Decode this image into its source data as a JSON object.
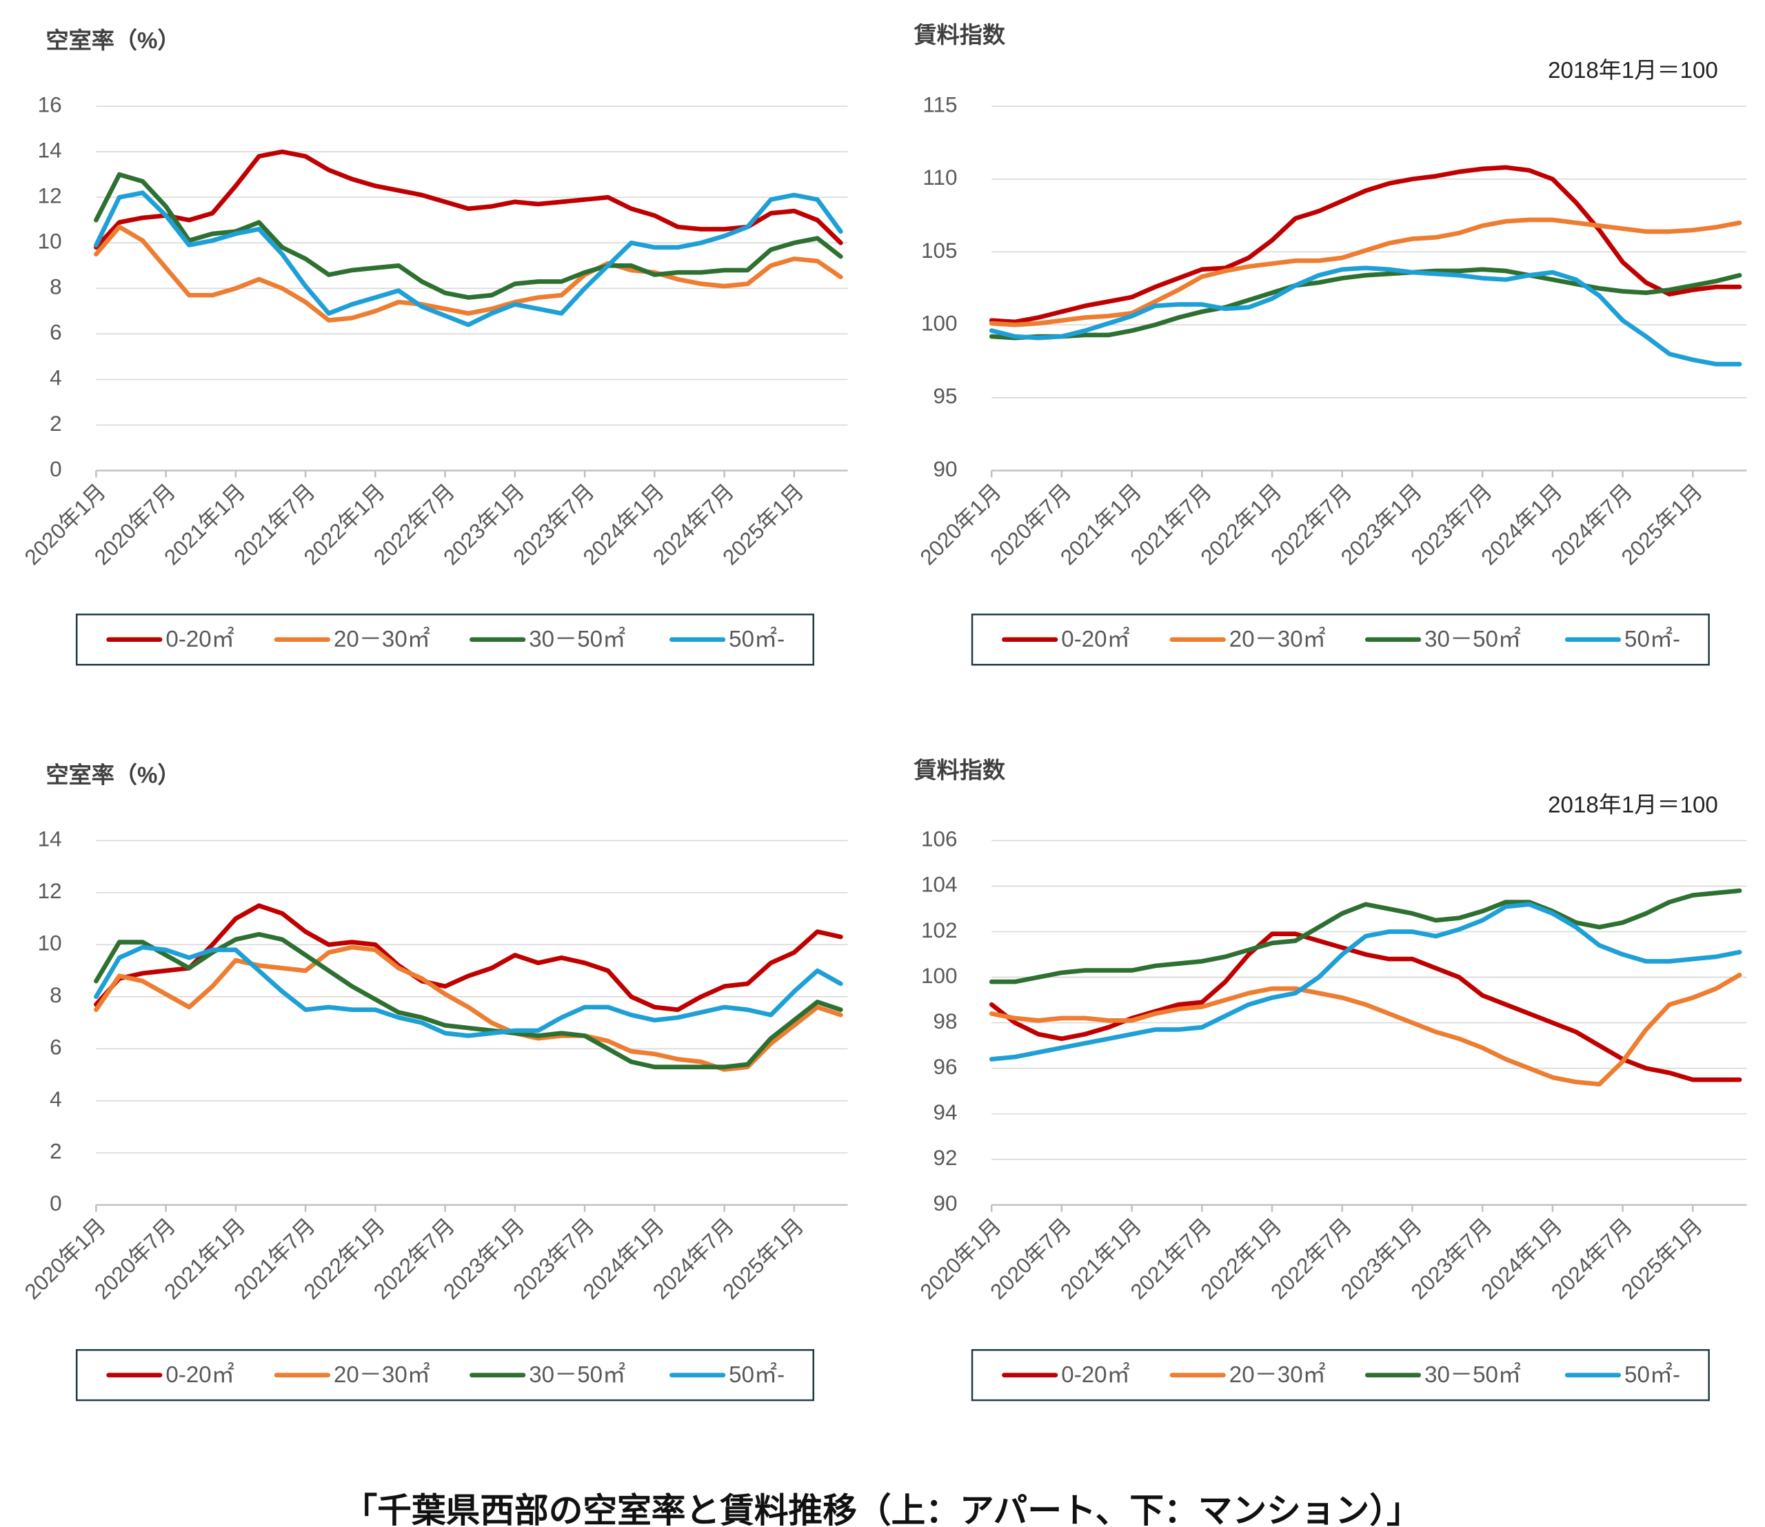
{
  "caption": "「千葉県西部の空室率と賃料推移（上：アパート、下：マンション）」",
  "chart_data": [
    {
      "type": "line",
      "title": "空室率（%）",
      "grid": true,
      "legend": "bottom",
      "categories": [
        "2020年1月",
        null,
        null,
        "2020年7月",
        null,
        null,
        "2021年1月",
        null,
        null,
        "2021年7月",
        null,
        null,
        "2022年1月",
        null,
        null,
        "2022年7月",
        null,
        null,
        "2023年1月",
        null,
        null,
        "2023年7月",
        null,
        null,
        "2024年1月",
        null,
        null,
        "2024年7月",
        null,
        null,
        "2025年1月",
        null,
        null
      ],
      "ylim": [
        0,
        16
      ],
      "yticks": [
        0,
        2,
        4,
        6,
        8,
        10,
        12,
        14,
        16
      ],
      "series": [
        {
          "name": "0-20㎡",
          "color": "#c00000",
          "values": [
            9.8,
            10.9,
            11.1,
            11.2,
            11.0,
            11.3,
            12.5,
            13.8,
            14.0,
            13.8,
            13.2,
            12.8,
            12.5,
            12.3,
            12.1,
            11.8,
            11.5,
            11.6,
            11.8,
            11.7,
            11.8,
            11.9,
            12.0,
            11.5,
            11.2,
            10.7,
            10.6,
            10.6,
            10.7,
            11.3,
            11.4,
            11.0,
            10.0
          ]
        },
        {
          "name": "20－30㎡",
          "color": "#ed7d31",
          "values": [
            9.5,
            10.7,
            10.1,
            8.9,
            7.7,
            7.7,
            8.0,
            8.4,
            8.0,
            7.4,
            6.6,
            6.7,
            7.0,
            7.4,
            7.3,
            7.1,
            6.9,
            7.1,
            7.4,
            7.6,
            7.7,
            8.6,
            9.1,
            8.8,
            8.7,
            8.4,
            8.2,
            8.1,
            8.2,
            9.0,
            9.3,
            9.2,
            8.5
          ]
        },
        {
          "name": "30－50㎡",
          "color": "#2e7031",
          "values": [
            11.0,
            13.0,
            12.7,
            11.6,
            10.1,
            10.4,
            10.5,
            10.9,
            9.8,
            9.3,
            8.6,
            8.8,
            8.9,
            9.0,
            8.3,
            7.8,
            7.6,
            7.7,
            8.2,
            8.3,
            8.3,
            8.7,
            9.0,
            9.0,
            8.6,
            8.7,
            8.7,
            8.8,
            8.8,
            9.7,
            10.0,
            10.2,
            9.4
          ]
        },
        {
          "name": "50㎡-",
          "color": "#1ea0d6",
          "values": [
            9.9,
            12.0,
            12.2,
            11.2,
            9.9,
            10.1,
            10.4,
            10.6,
            9.5,
            8.1,
            6.9,
            7.3,
            7.6,
            7.9,
            7.2,
            6.8,
            6.4,
            6.9,
            7.3,
            7.1,
            6.9,
            8.0,
            9.0,
            10.0,
            9.8,
            9.8,
            10.0,
            10.3,
            10.7,
            11.9,
            12.1,
            11.9,
            10.5
          ]
        }
      ]
    },
    {
      "type": "line",
      "title": "賃料指数",
      "note": "2018年1月＝100",
      "grid": true,
      "legend": "bottom",
      "categories": [
        "2020年1月",
        null,
        null,
        "2020年7月",
        null,
        null,
        "2021年1月",
        null,
        null,
        "2021年7月",
        null,
        null,
        "2022年1月",
        null,
        null,
        "2022年7月",
        null,
        null,
        "2023年1月",
        null,
        null,
        "2023年7月",
        null,
        null,
        "2024年1月",
        null,
        null,
        "2024年7月",
        null,
        null,
        "2025年1月",
        null,
        null
      ],
      "ylim": [
        90,
        115
      ],
      "yticks": [
        90,
        95,
        100,
        105,
        110,
        115
      ],
      "series": [
        {
          "name": "0-20㎡",
          "color": "#c00000",
          "values": [
            100.3,
            100.2,
            100.5,
            100.9,
            101.3,
            101.6,
            101.9,
            102.6,
            103.2,
            103.8,
            103.9,
            104.6,
            105.8,
            107.3,
            107.8,
            108.5,
            109.2,
            109.7,
            110.0,
            110.2,
            110.5,
            110.7,
            110.8,
            110.6,
            110.0,
            108.4,
            106.5,
            104.3,
            102.9,
            102.1,
            102.4,
            102.6,
            102.6
          ]
        },
        {
          "name": "20－30㎡",
          "color": "#ed7d31",
          "values": [
            100.1,
            100.0,
            100.1,
            100.3,
            100.5,
            100.6,
            100.8,
            101.6,
            102.4,
            103.3,
            103.7,
            104.0,
            104.2,
            104.4,
            104.4,
            104.6,
            105.1,
            105.6,
            105.9,
            106.0,
            106.3,
            106.8,
            107.1,
            107.2,
            107.2,
            107.0,
            106.8,
            106.6,
            106.4,
            106.4,
            106.5,
            106.7,
            107.0
          ]
        },
        {
          "name": "30－50㎡",
          "color": "#2e7031",
          "values": [
            99.2,
            99.1,
            99.2,
            99.2,
            99.3,
            99.3,
            99.6,
            100.0,
            100.5,
            100.9,
            101.2,
            101.7,
            102.2,
            102.7,
            102.9,
            103.2,
            103.4,
            103.5,
            103.6,
            103.7,
            103.7,
            103.8,
            103.7,
            103.4,
            103.1,
            102.8,
            102.5,
            102.3,
            102.2,
            102.4,
            102.7,
            103.0,
            103.4
          ]
        },
        {
          "name": "50㎡-",
          "color": "#1ea0d6",
          "values": [
            99.6,
            99.2,
            99.1,
            99.2,
            99.6,
            100.1,
            100.6,
            101.3,
            101.4,
            101.4,
            101.1,
            101.2,
            101.8,
            102.7,
            103.4,
            103.8,
            103.9,
            103.8,
            103.6,
            103.5,
            103.4,
            103.2,
            103.1,
            103.4,
            103.6,
            103.1,
            102.0,
            100.3,
            99.2,
            98.0,
            97.6,
            97.3,
            97.3
          ]
        }
      ]
    },
    {
      "type": "line",
      "title": "空室率（%）",
      "grid": true,
      "legend": "bottom",
      "categories": [
        "2020年1月",
        null,
        null,
        "2020年7月",
        null,
        null,
        "2021年1月",
        null,
        null,
        "2021年7月",
        null,
        null,
        "2022年1月",
        null,
        null,
        "2022年7月",
        null,
        null,
        "2023年1月",
        null,
        null,
        "2023年7月",
        null,
        null,
        "2024年1月",
        null,
        null,
        "2024年7月",
        null,
        null,
        "2025年1月",
        null,
        null
      ],
      "ylim": [
        0,
        14
      ],
      "yticks": [
        0,
        2,
        4,
        6,
        8,
        10,
        12,
        14
      ],
      "series": [
        {
          "name": "0-20㎡",
          "color": "#c00000",
          "values": [
            7.7,
            8.7,
            8.9,
            9.0,
            9.1,
            10.0,
            11.0,
            11.5,
            11.2,
            10.5,
            10.0,
            10.1,
            10.0,
            9.2,
            8.6,
            8.4,
            8.8,
            9.1,
            9.6,
            9.3,
            9.5,
            9.3,
            9.0,
            8.0,
            7.6,
            7.5,
            8.0,
            8.4,
            8.5,
            9.3,
            9.7,
            10.5,
            10.3
          ]
        },
        {
          "name": "20－30㎡",
          "color": "#ed7d31",
          "values": [
            7.5,
            8.8,
            8.6,
            8.1,
            7.6,
            8.4,
            9.4,
            9.2,
            9.1,
            9.0,
            9.7,
            9.9,
            9.8,
            9.1,
            8.7,
            8.1,
            7.6,
            7.0,
            6.6,
            6.4,
            6.5,
            6.5,
            6.3,
            5.9,
            5.8,
            5.6,
            5.5,
            5.2,
            5.3,
            6.2,
            6.9,
            7.6,
            7.3
          ]
        },
        {
          "name": "30－50㎡",
          "color": "#2e7031",
          "values": [
            8.6,
            10.1,
            10.1,
            9.6,
            9.1,
            9.7,
            10.2,
            10.4,
            10.2,
            9.6,
            9.0,
            8.4,
            7.9,
            7.4,
            7.2,
            6.9,
            6.8,
            6.7,
            6.6,
            6.5,
            6.6,
            6.5,
            6.0,
            5.5,
            5.3,
            5.3,
            5.3,
            5.3,
            5.4,
            6.4,
            7.1,
            7.8,
            7.5
          ]
        },
        {
          "name": "50㎡-",
          "color": "#1ea0d6",
          "values": [
            8.0,
            9.5,
            9.9,
            9.8,
            9.5,
            9.8,
            9.8,
            9.0,
            8.2,
            7.5,
            7.6,
            7.5,
            7.5,
            7.2,
            7.0,
            6.6,
            6.5,
            6.6,
            6.7,
            6.7,
            7.2,
            7.6,
            7.6,
            7.3,
            7.1,
            7.2,
            7.4,
            7.6,
            7.5,
            7.3,
            8.2,
            9.0,
            8.5
          ]
        }
      ]
    },
    {
      "type": "line",
      "title": "賃料指数",
      "note": "2018年1月＝100",
      "grid": true,
      "legend": "bottom",
      "categories": [
        "2020年1月",
        null,
        null,
        "2020年7月",
        null,
        null,
        "2021年1月",
        null,
        null,
        "2021年7月",
        null,
        null,
        "2022年1月",
        null,
        null,
        "2022年7月",
        null,
        null,
        "2023年1月",
        null,
        null,
        "2023年7月",
        null,
        null,
        "2024年1月",
        null,
        null,
        "2024年7月",
        null,
        null,
        "2025年1月",
        null,
        null
      ],
      "ylim": [
        90,
        106
      ],
      "yticks": [
        90,
        92,
        94,
        96,
        98,
        100,
        102,
        104,
        106
      ],
      "series": [
        {
          "name": "0-20㎡",
          "color": "#c00000",
          "values": [
            98.8,
            98.0,
            97.5,
            97.3,
            97.5,
            97.8,
            98.2,
            98.5,
            98.8,
            98.9,
            99.8,
            101.0,
            101.9,
            101.9,
            101.6,
            101.3,
            101.0,
            100.8,
            100.8,
            100.4,
            100.0,
            99.2,
            98.8,
            98.4,
            98.0,
            97.6,
            97.0,
            96.4,
            96.0,
            95.8,
            95.5,
            95.5,
            95.5
          ]
        },
        {
          "name": "20－30㎡",
          "color": "#ed7d31",
          "values": [
            98.4,
            98.2,
            98.1,
            98.2,
            98.2,
            98.1,
            98.1,
            98.4,
            98.6,
            98.7,
            99.0,
            99.3,
            99.5,
            99.5,
            99.3,
            99.1,
            98.8,
            98.4,
            98.0,
            97.6,
            97.3,
            96.9,
            96.4,
            96.0,
            95.6,
            95.4,
            95.3,
            96.3,
            97.7,
            98.8,
            99.1,
            99.5,
            100.1
          ]
        },
        {
          "name": "30－50㎡",
          "color": "#2e7031",
          "values": [
            99.8,
            99.8,
            100.0,
            100.2,
            100.3,
            100.3,
            100.3,
            100.5,
            100.6,
            100.7,
            100.9,
            101.2,
            101.5,
            101.6,
            102.2,
            102.8,
            103.2,
            103.0,
            102.8,
            102.5,
            102.6,
            102.9,
            103.3,
            103.3,
            102.9,
            102.4,
            102.2,
            102.4,
            102.8,
            103.3,
            103.6,
            103.7,
            103.8
          ]
        },
        {
          "name": "50㎡-",
          "color": "#1ea0d6",
          "values": [
            96.4,
            96.5,
            96.7,
            96.9,
            97.1,
            97.3,
            97.5,
            97.7,
            97.7,
            97.8,
            98.3,
            98.8,
            99.1,
            99.3,
            100.0,
            101.0,
            101.8,
            102.0,
            102.0,
            101.8,
            102.1,
            102.5,
            103.1,
            103.2,
            102.8,
            102.2,
            101.4,
            101.0,
            100.7,
            100.7,
            100.8,
            100.9,
            101.1
          ]
        }
      ]
    }
  ]
}
